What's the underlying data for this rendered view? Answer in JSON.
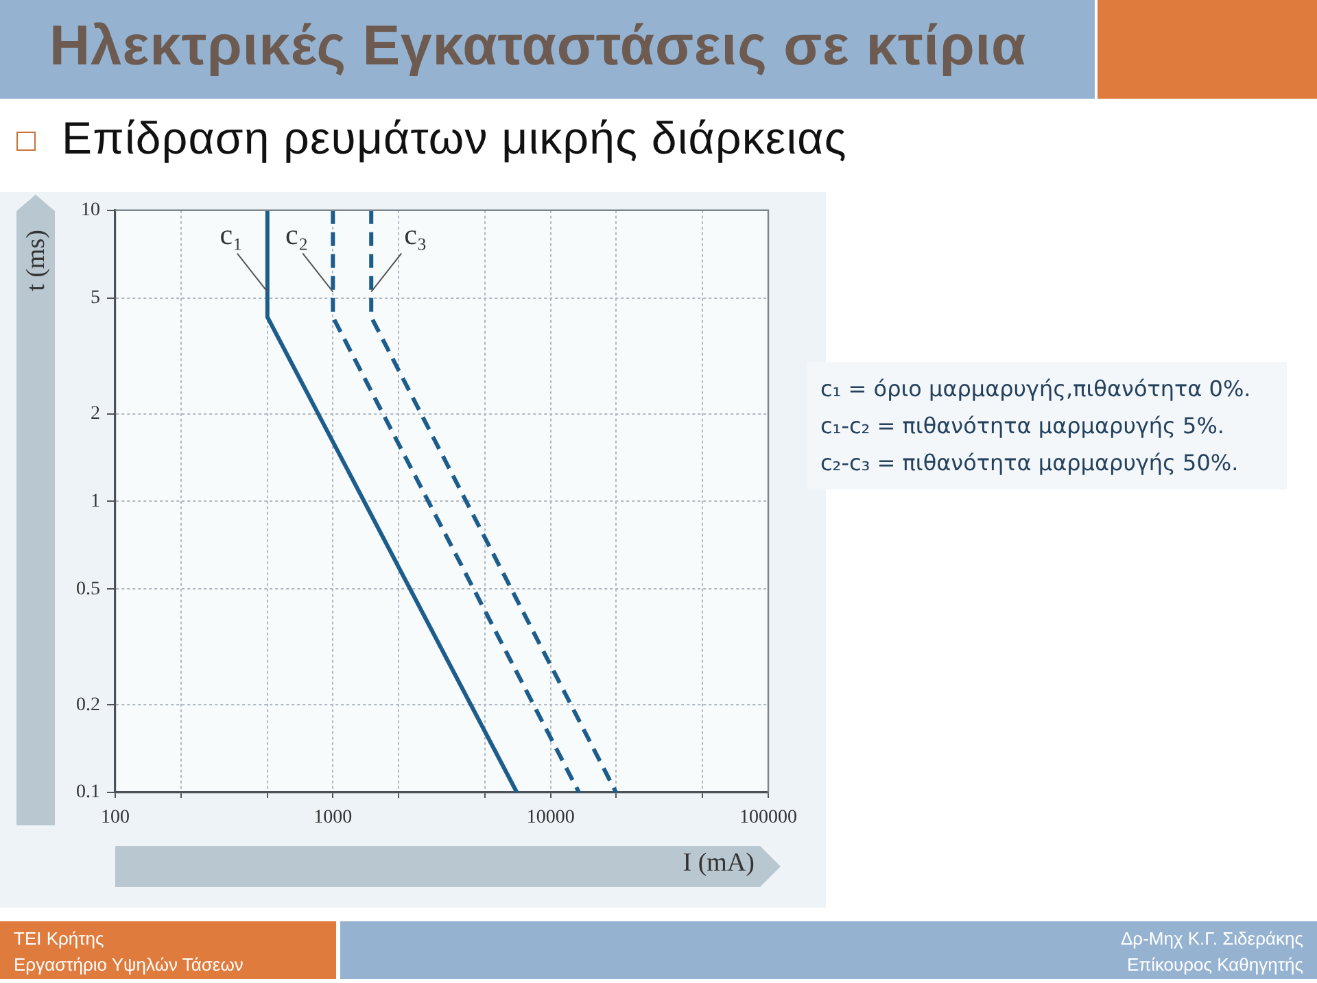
{
  "chart_data": {
    "type": "line",
    "title": "Ηλεκτρικές Εγκαταστάσεις σε κτίρια",
    "subtitle": "Επίδραση ρευμάτων μικρής διάρκειας",
    "xlabel": "I (mA)",
    "ylabel": "t (ms)",
    "series": [
      {
        "name": "c₁",
        "color": "#1d5d8c",
        "x": [
          500,
          500,
          7000
        ],
        "values": [
          10,
          4.3,
          0.1
        ],
        "line_style": "solid"
      },
      {
        "name": "c₂",
        "color": "#1d5d8c",
        "x": [
          1000,
          1000,
          13500
        ],
        "values": [
          10,
          4.3,
          0.1
        ],
        "line_style": "dashed"
      },
      {
        "name": "c₃",
        "color": "#1d5d8c",
        "x": [
          1500,
          1500,
          20000
        ],
        "values": [
          10,
          4.3,
          0.1
        ],
        "line_style": "dashed"
      }
    ],
    "xlim": [
      100,
      100000
    ],
    "ylim": [
      0.1,
      10
    ],
    "xticks": [
      100,
      {
        "value": 200,
        "label": null
      },
      {
        "value": 500,
        "label": null
      },
      1000,
      {
        "value": 2000,
        "label": null
      },
      {
        "value": 5000,
        "label": null
      },
      10000,
      {
        "value": 20000,
        "label": null
      },
      {
        "value": 50000,
        "label": null
      },
      100000
    ],
    "yticks": [
      0.1,
      0.2,
      0.5,
      1,
      2,
      5,
      10
    ],
    "log": "xy",
    "grid": true,
    "legend": false,
    "marker": "none",
    "annotations": [
      "c₁ = όριο μαρμαρυγής,πιθανότητα 0%.",
      "c₁-c₂ = πιθανότητα μαρμαρυγής 5%.",
      "c₂-c₃ = πιθανότητα μαρμαρυγής 50%.",
      "ΤΕΙ Κρήτης",
      "Εργαστήριο Υψηλών Τάσεων",
      "Δρ-Μηχ Κ.Γ. Σιδεράκης",
      "Επίκουρος Καθηγητής"
    ]
  }
}
